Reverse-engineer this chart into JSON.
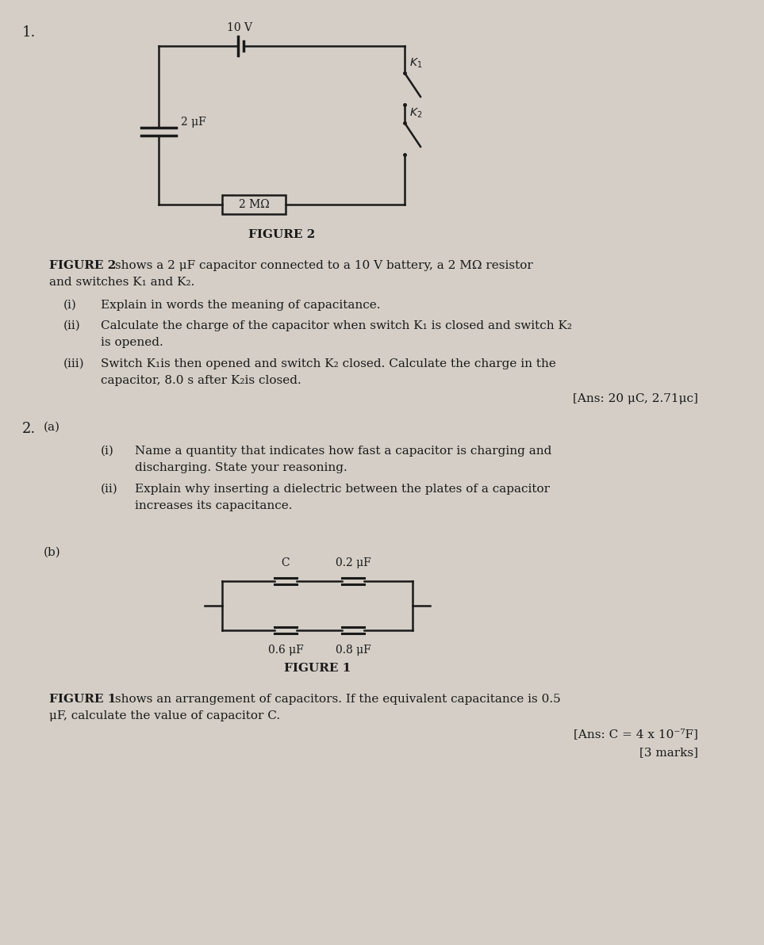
{
  "bg_color": "#d4cec6",
  "text_color": "#1a1a1a",
  "fig_width": 9.63,
  "fig_height": 11.92,
  "bat_label": "10 V",
  "cap2_label": "2 μF",
  "res_label": "2 MΩ",
  "fig2_title": "FIGURE 2",
  "fig1_title": "FIGURE 1",
  "q1_ans": "[Ans: 20 μC, 2.71μc]",
  "q2b_ans": "[Ans: C = 4 x 10⁻⁷F]",
  "q2b_marks": "[3 marks]",
  "cap_C_label": "C",
  "cap_02_label": "0.2 μF",
  "cap_06_label": "0.6 μF",
  "cap_08_label": "0.8 μF"
}
